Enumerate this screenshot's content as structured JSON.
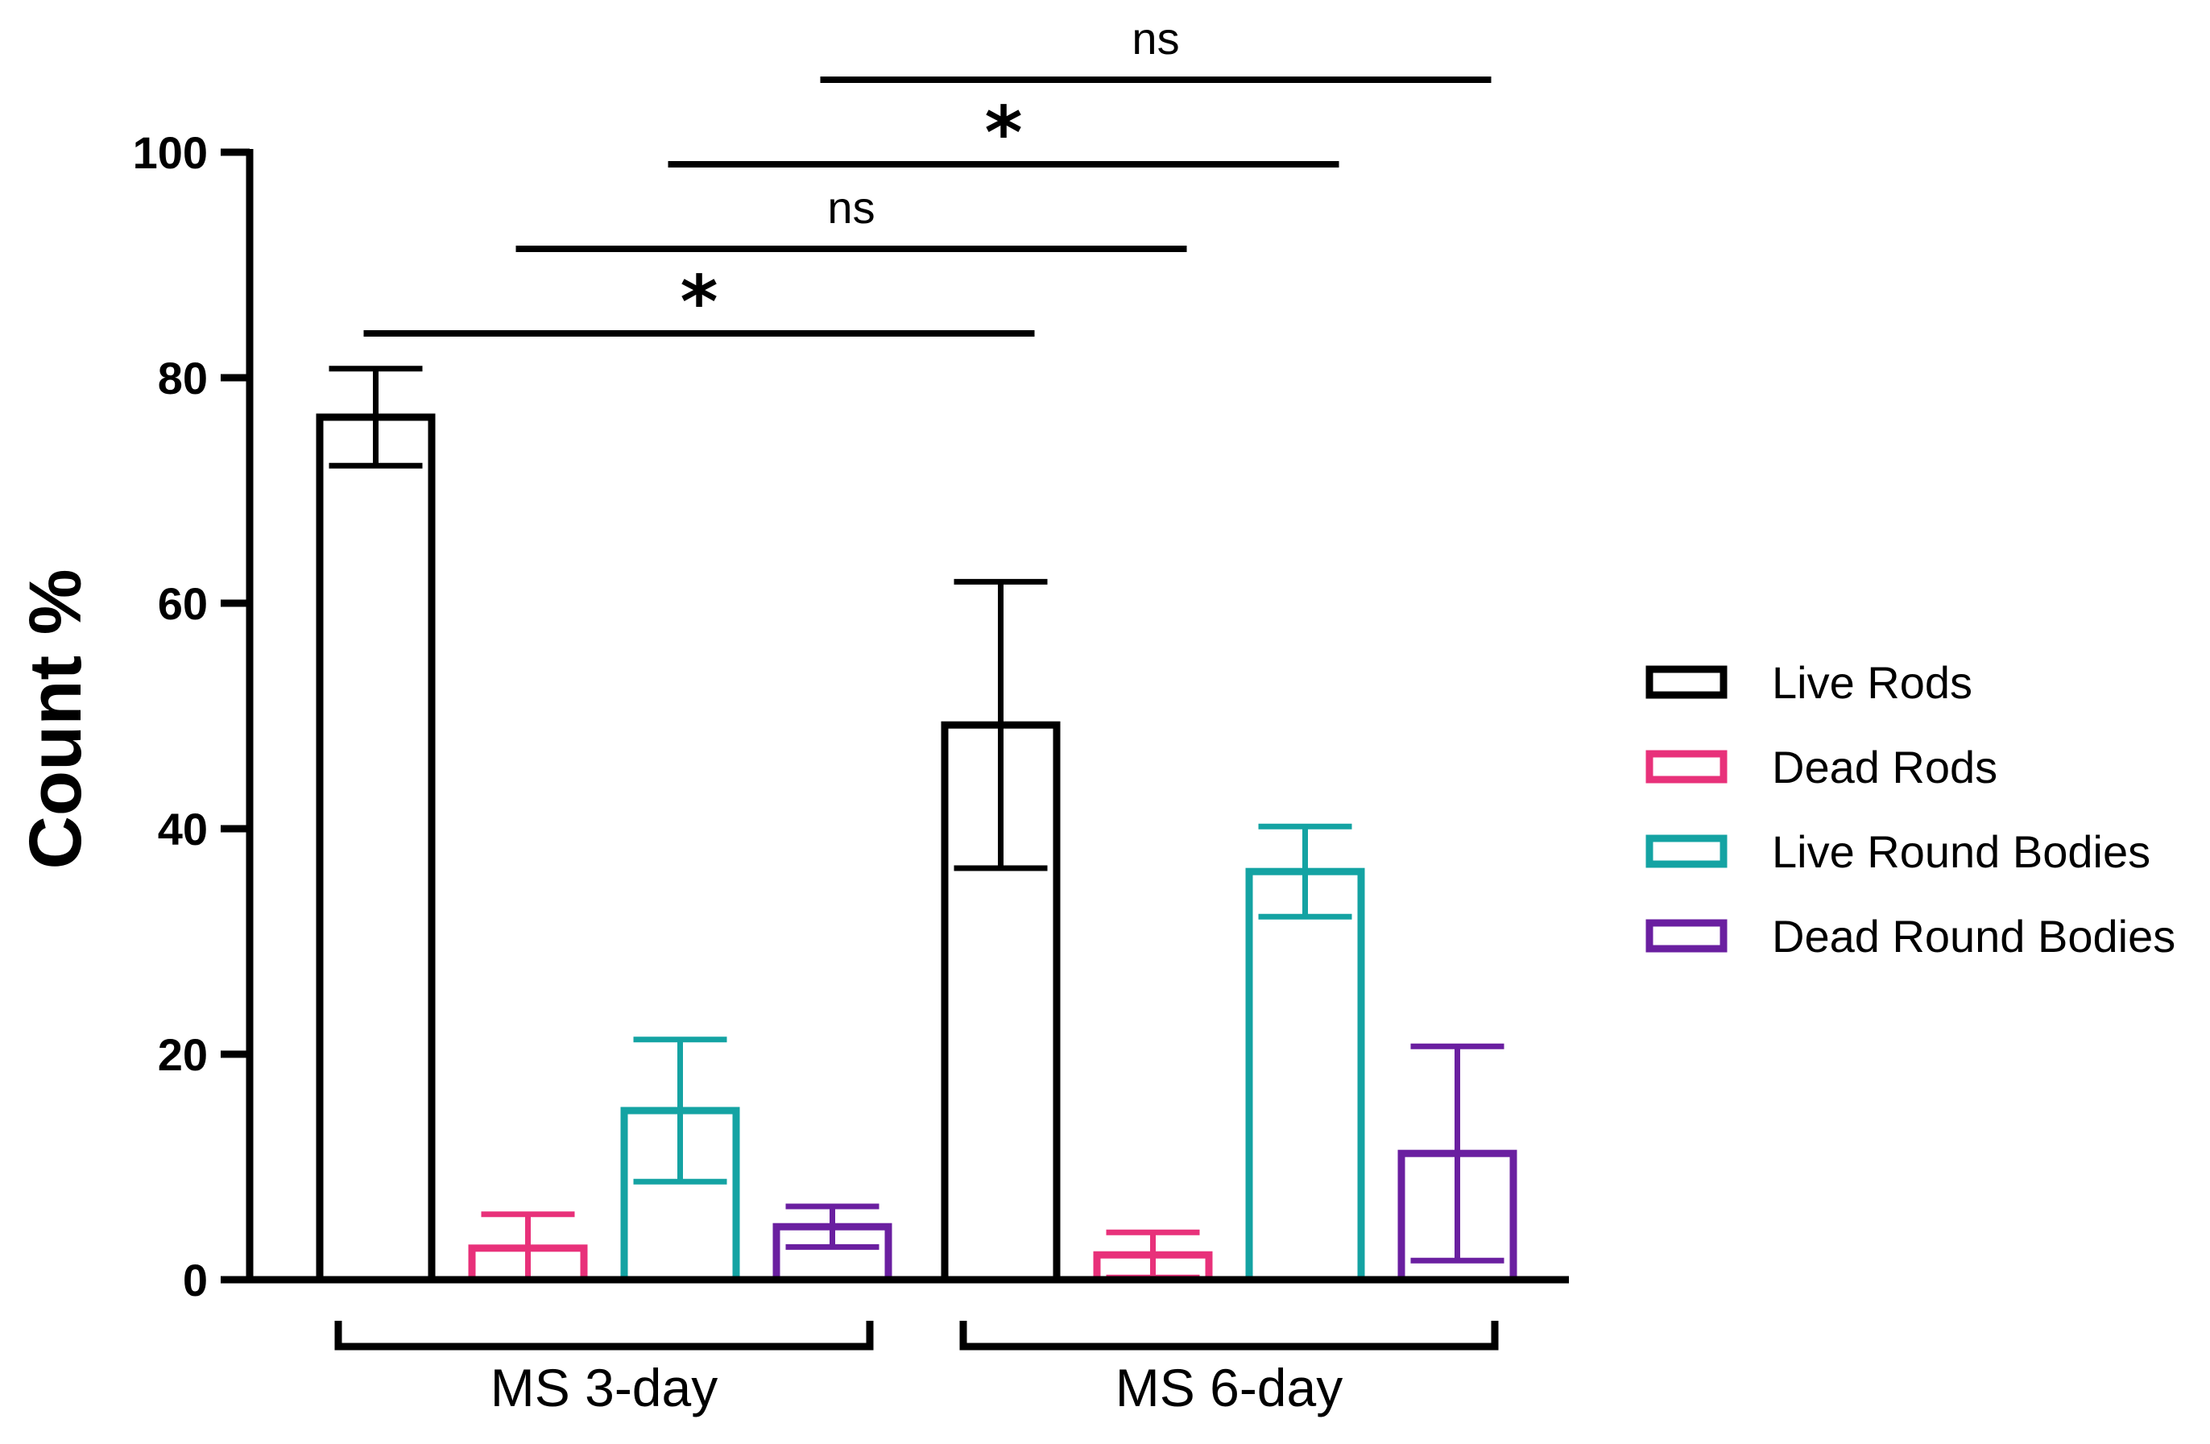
{
  "chart_data": {
    "type": "bar",
    "title": "",
    "xlabel": "",
    "ylabel": "Count %",
    "ylim": [
      0,
      100
    ],
    "yticks": [
      "0",
      "20",
      "40",
      "60",
      "80",
      "100"
    ],
    "groups": [
      "MS 3-day",
      "MS 6-day"
    ],
    "series": [
      {
        "name": "Live Rods",
        "color": "#000000",
        "values": [
          76.5,
          49.2
        ],
        "errors": [
          4.3,
          12.7
        ]
      },
      {
        "name": "Dead Rods",
        "color": "#e8317a",
        "values": [
          2.8,
          2.2
        ],
        "errors": [
          3.0,
          2.0
        ]
      },
      {
        "name": "Live Round Bodies",
        "color": "#14a3a3",
        "values": [
          15.0,
          36.2
        ],
        "errors": [
          6.3,
          4.0
        ]
      },
      {
        "name": "Dead Round Bodies",
        "color": "#6a1fa0",
        "values": [
          4.7,
          11.2
        ],
        "errors": [
          1.8,
          9.5
        ]
      }
    ],
    "legend": "right",
    "significance": [
      {
        "from_group": 0,
        "to_group": 1,
        "series": 0,
        "label": "*",
        "level": 0
      },
      {
        "from_group": 0,
        "to_group": 1,
        "series": 1,
        "label": "ns",
        "level": 1
      },
      {
        "from_group": 0,
        "to_group": 1,
        "series": 2,
        "label": "*",
        "level": 2
      },
      {
        "from_group": 0,
        "to_group": 1,
        "series": 3,
        "label": "ns",
        "level": 3
      }
    ]
  }
}
